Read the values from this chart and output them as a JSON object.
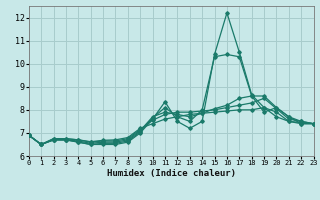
{
  "xlabel": "Humidex (Indice chaleur)",
  "xlim": [
    0,
    23
  ],
  "ylim": [
    6,
    12.5
  ],
  "yticks": [
    6,
    7,
    8,
    9,
    10,
    11,
    12
  ],
  "xticks": [
    0,
    1,
    2,
    3,
    4,
    5,
    6,
    7,
    8,
    9,
    10,
    11,
    12,
    13,
    14,
    15,
    16,
    17,
    18,
    19,
    20,
    21,
    22,
    23
  ],
  "bg_color": "#c8e8e8",
  "grid_color": "#a8cccc",
  "line_color": "#1a7a6a",
  "lines": [
    [
      6.9,
      6.5,
      6.7,
      6.7,
      6.6,
      6.5,
      6.5,
      6.5,
      6.6,
      7.0,
      7.6,
      8.35,
      7.5,
      7.2,
      7.5,
      10.4,
      12.2,
      10.5,
      8.65,
      8.1,
      7.7,
      7.5,
      7.4,
      7.4
    ],
    [
      6.9,
      6.5,
      6.7,
      6.7,
      6.6,
      6.5,
      6.55,
      6.55,
      6.65,
      7.05,
      7.65,
      8.1,
      7.7,
      7.5,
      8.0,
      10.3,
      10.4,
      10.3,
      8.6,
      7.9,
      8.1,
      7.7,
      7.4,
      7.4
    ],
    [
      6.9,
      6.5,
      6.7,
      6.7,
      6.65,
      6.55,
      6.6,
      6.6,
      6.7,
      7.1,
      7.7,
      7.9,
      7.8,
      7.7,
      7.85,
      8.05,
      8.2,
      8.5,
      8.6,
      8.6,
      8.1,
      7.7,
      7.5,
      7.4
    ],
    [
      6.9,
      6.5,
      6.75,
      6.75,
      6.7,
      6.6,
      6.65,
      6.65,
      6.75,
      7.15,
      7.55,
      7.8,
      7.9,
      7.9,
      7.95,
      8.0,
      8.1,
      8.2,
      8.3,
      8.5,
      8.05,
      7.6,
      7.5,
      7.4
    ],
    [
      6.9,
      6.5,
      6.75,
      6.75,
      6.7,
      6.62,
      6.68,
      6.7,
      6.8,
      7.2,
      7.4,
      7.6,
      7.7,
      7.8,
      7.85,
      7.9,
      7.95,
      8.0,
      8.0,
      8.1,
      7.9,
      7.5,
      7.45,
      7.4
    ]
  ]
}
